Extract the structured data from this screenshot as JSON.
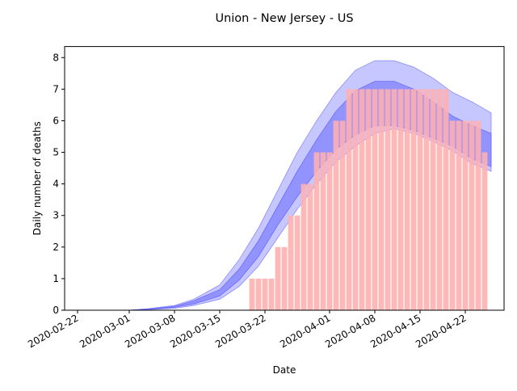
{
  "chart_data": {
    "type": "bar",
    "title": "Union - New Jersey - US",
    "xlabel": "Date",
    "ylabel": "Daily number of deaths",
    "x_ticks": [
      "2020-02-22",
      "2020-03-01",
      "2020-03-08",
      "2020-03-15",
      "2020-03-22",
      "2020-04-01",
      "2020-04-08",
      "2020-04-15",
      "2020-04-22"
    ],
    "y_ticks": [
      "0",
      "1",
      "2",
      "3",
      "4",
      "5",
      "6",
      "7",
      "8"
    ],
    "ylim": [
      0,
      8.35
    ],
    "xlim": [
      "2020-02-20",
      "2020-04-28"
    ],
    "grid": false,
    "colors": {
      "bars": "#ffb0b0",
      "band_outer": "#b4b4ff",
      "band_inner": "#7d7dff",
      "axis": "#000000"
    },
    "daily_deaths": {
      "dates": [
        "2020-03-20",
        "2020-03-21",
        "2020-03-22",
        "2020-03-23",
        "2020-03-24",
        "2020-03-25",
        "2020-03-26",
        "2020-03-27",
        "2020-03-28",
        "2020-03-29",
        "2020-03-30",
        "2020-03-31",
        "2020-04-01",
        "2020-04-02",
        "2020-04-03",
        "2020-04-04",
        "2020-04-05",
        "2020-04-06",
        "2020-04-07",
        "2020-04-08",
        "2020-04-09",
        "2020-04-10",
        "2020-04-11",
        "2020-04-12",
        "2020-04-13",
        "2020-04-14",
        "2020-04-15",
        "2020-04-16",
        "2020-04-17",
        "2020-04-18",
        "2020-04-19",
        "2020-04-20",
        "2020-04-21",
        "2020-04-22",
        "2020-04-23",
        "2020-04-24",
        "2020-04-25"
      ],
      "values": [
        1,
        1,
        1,
        1,
        2,
        2,
        3,
        3,
        4,
        4,
        5,
        5,
        5,
        6,
        6,
        7,
        7,
        7,
        7,
        7,
        7,
        7,
        7,
        7,
        7,
        7,
        7,
        7,
        7,
        7,
        7,
        6,
        6,
        6,
        6,
        6,
        5
      ]
    },
    "model_bands": {
      "dates": [
        "2020-03-01",
        "2020-03-04",
        "2020-03-08",
        "2020-03-11",
        "2020-03-15",
        "2020-03-18",
        "2020-03-21",
        "2020-03-24",
        "2020-03-27",
        "2020-03-30",
        "2020-04-02",
        "2020-04-05",
        "2020-04-08",
        "2020-04-11",
        "2020-04-14",
        "2020-04-17",
        "2020-04-20",
        "2020-04-23",
        "2020-04-26"
      ],
      "outer_upper": [
        0.0,
        0.05,
        0.15,
        0.35,
        0.8,
        1.6,
        2.6,
        3.8,
        5.0,
        6.0,
        6.9,
        7.6,
        7.9,
        7.9,
        7.7,
        7.35,
        6.9,
        6.6,
        6.25
      ],
      "inner_upper": [
        0.0,
        0.04,
        0.12,
        0.3,
        0.65,
        1.3,
        2.2,
        3.3,
        4.4,
        5.4,
        6.3,
        6.95,
        7.25,
        7.25,
        7.0,
        6.6,
        6.15,
        5.85,
        5.6
      ],
      "inner_lower": [
        0.0,
        0.03,
        0.09,
        0.2,
        0.45,
        0.95,
        1.7,
        2.7,
        3.6,
        4.4,
        5.1,
        5.55,
        5.85,
        5.85,
        5.7,
        5.45,
        5.2,
        4.8,
        4.55
      ],
      "outer_lower": [
        0.0,
        0.02,
        0.06,
        0.15,
        0.35,
        0.75,
        1.4,
        2.3,
        3.2,
        4.0,
        4.7,
        5.2,
        5.6,
        5.75,
        5.6,
        5.35,
        5.05,
        4.65,
        4.4
      ]
    }
  }
}
